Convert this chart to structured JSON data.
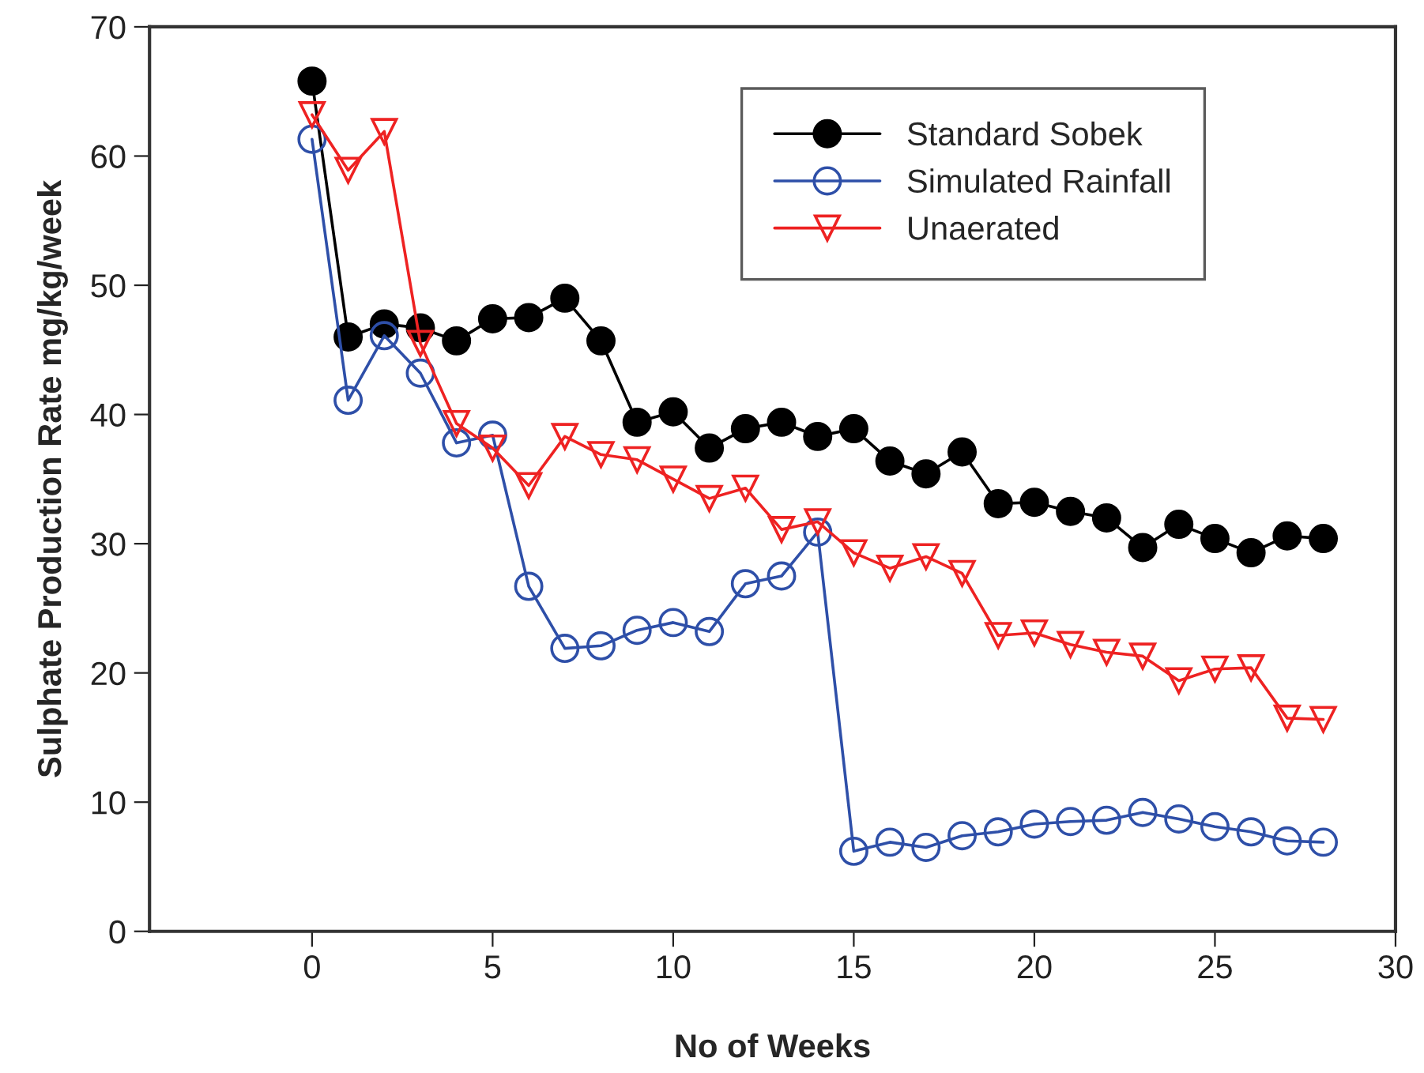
{
  "chart_data": {
    "type": "line",
    "xlabel": "No of Weeks",
    "ylabel": "Sulphate Production Rate mg/kg/week",
    "x": [
      0,
      1,
      2,
      3,
      4,
      5,
      6,
      7,
      8,
      9,
      10,
      11,
      12,
      13,
      14,
      15,
      16,
      17,
      18,
      19,
      20,
      21,
      22,
      23,
      24,
      25,
      26,
      27,
      28
    ],
    "series": [
      {
        "name": "Standard Sobek",
        "color": "#000000",
        "marker": "circle",
        "values": [
          65.8,
          46.0,
          47.0,
          46.7,
          45.7,
          47.4,
          47.5,
          49.0,
          45.7,
          39.4,
          40.2,
          37.4,
          38.9,
          39.4,
          38.3,
          38.9,
          36.4,
          35.4,
          37.1,
          33.1,
          33.2,
          32.5,
          32.0,
          29.7,
          31.5,
          30.4,
          29.3,
          30.6,
          30.4
        ]
      },
      {
        "name": "Simulated Rainfall",
        "color": "#2e4fa8",
        "marker": "circle",
        "values": [
          61.3,
          41.1,
          46.1,
          43.2,
          37.8,
          38.4,
          26.7,
          21.9,
          22.1,
          23.3,
          23.9,
          23.2,
          26.9,
          27.5,
          30.9,
          6.2,
          6.9,
          6.5,
          7.4,
          7.7,
          8.3,
          8.5,
          8.6,
          9.2,
          8.7,
          8.1,
          7.7,
          7.0,
          6.9
        ]
      },
      {
        "name": "Unaerated",
        "color": "#ee2222",
        "marker": "triangle",
        "values": [
          63.2,
          58.9,
          61.9,
          45.5,
          39.3,
          37.4,
          34.5,
          38.3,
          36.9,
          36.5,
          35.0,
          33.5,
          34.3,
          31.1,
          31.7,
          29.3,
          28.1,
          29.0,
          27.7,
          22.9,
          23.1,
          22.2,
          21.6,
          21.3,
          19.4,
          20.3,
          20.4,
          16.5,
          16.4
        ]
      }
    ],
    "xlim": [
      -4.5,
      30
    ],
    "xticks": [
      0,
      5,
      10,
      15,
      20,
      25,
      30
    ],
    "ylim": [
      0,
      70
    ],
    "yticks": [
      0,
      10,
      20,
      30,
      40,
      50,
      60,
      70
    ],
    "grid": false,
    "legend": "top right",
    "line_style": "solid"
  }
}
